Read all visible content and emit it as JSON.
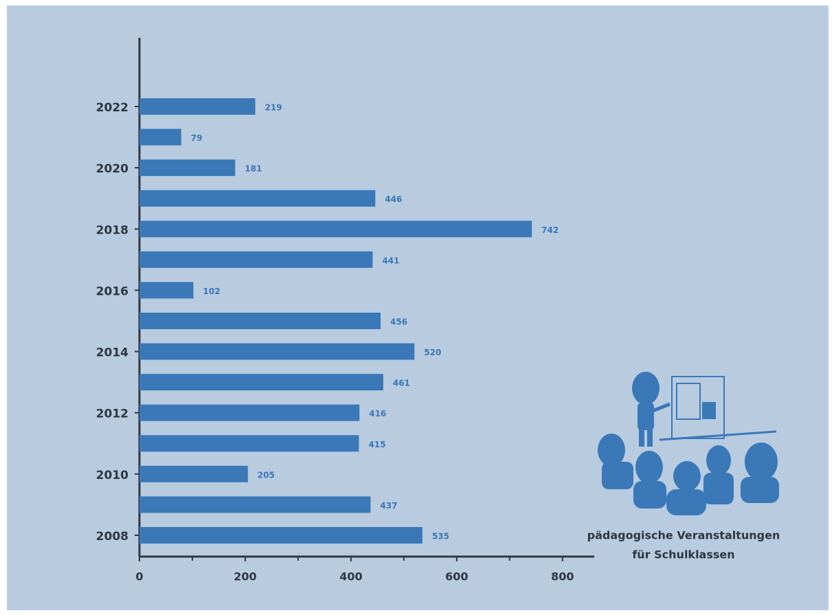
{
  "chart_data": {
    "type": "bar",
    "orientation": "horizontal",
    "categories": [
      "2008",
      null,
      "2010",
      null,
      "2012",
      null,
      "2014",
      null,
      "2016",
      null,
      "2018",
      null,
      "2020",
      null,
      "2022"
    ],
    "values": [
      535,
      437,
      205,
      415,
      416,
      461,
      520,
      456,
      102,
      441,
      742,
      446,
      181,
      79,
      219
    ],
    "color": "#3a78b8",
    "xlim": [
      0,
      860
    ],
    "xticks": [
      0,
      200,
      400,
      600,
      800
    ],
    "minor_xticks": [
      100,
      300,
      500,
      700
    ],
    "annotation": [
      "pädagogische Veranstaltungen",
      "für Schulklassen"
    ]
  }
}
